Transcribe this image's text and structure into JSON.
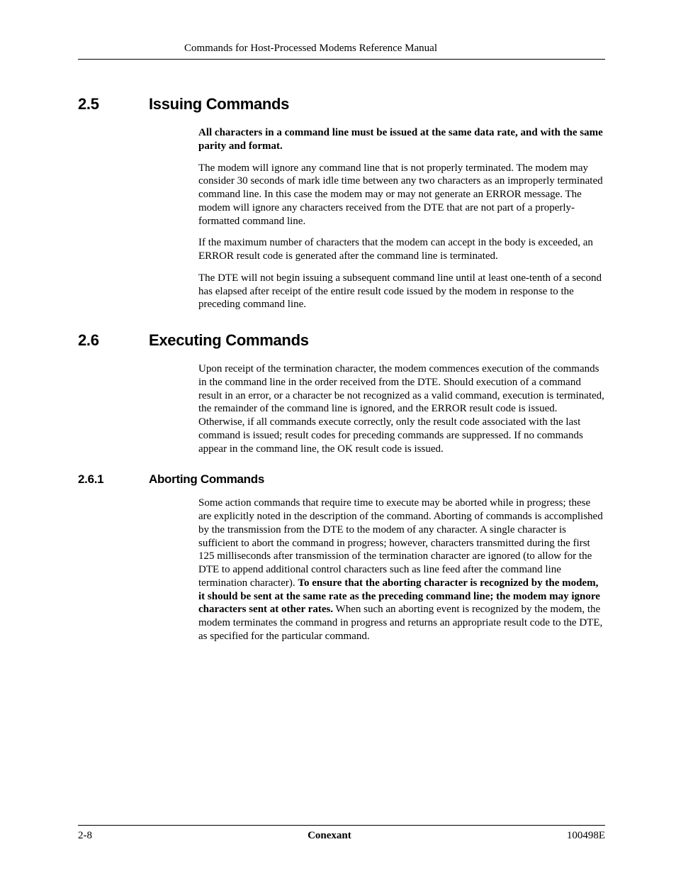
{
  "header": {
    "title": "Commands for Host-Processed Modems Reference Manual"
  },
  "sections": {
    "s25": {
      "number": "2.5",
      "title": "Issuing Commands",
      "p1_bold": "All characters in a command line must be issued at the same data rate, and with the same parity and format.",
      "p2": "The modem will ignore any command line that is not properly terminated. The modem may consider 30 seconds of mark idle time between any two characters as an improperly terminated command line. In this case the modem may or may not generate an ERROR message. The modem will ignore any characters received from the DTE that are not part of a properly-formatted command line.",
      "p3": "If the maximum number of characters that the modem can accept in the body is exceeded, an ERROR result code is generated after the command line is terminated.",
      "p4": "The DTE will not begin issuing a subsequent command line until at least one-tenth of a second has elapsed after receipt of the entire result code issued by the modem in response to the preceding command line."
    },
    "s26": {
      "number": "2.6",
      "title": "Executing Commands",
      "p1": "Upon receipt of the termination character, the modem commences execution of the commands in the command line in the order received from the DTE. Should execution of a command result in an error, or a character be not recognized as a valid command, execution is terminated, the remainder of the command line is ignored, and the ERROR result code is issued. Otherwise, if all commands execute correctly, only the result code associated with the last command is issued; result codes for preceding commands are suppressed. If no commands appear in the command line, the OK result code is issued."
    },
    "s261": {
      "number": "2.6.1",
      "title": "Aborting Commands",
      "p1a": "Some action commands that require time to execute may be aborted while in progress; these are explicitly noted in the description of the command. Aborting of commands is accomplished by the transmission from the DTE to the modem of any character. A single character is sufficient to abort the command in progress; however, characters transmitted during the first 125 milliseconds after transmission of the termination character are ignored (to allow for the DTE to append additional control characters such as line feed after the command line termination character). ",
      "p1b_bold": "To ensure that the aborting character is recognized by the modem, it should be sent at the same rate as the preceding command line; the modem may ignore characters sent at other rates.",
      "p1c": " When such an aborting event is recognized by the modem, the modem terminates the command in progress and returns an appropriate result code to the DTE, as specified for the particular command."
    }
  },
  "footer": {
    "left": "2-8",
    "center": "Conexant",
    "right": "100498E"
  }
}
